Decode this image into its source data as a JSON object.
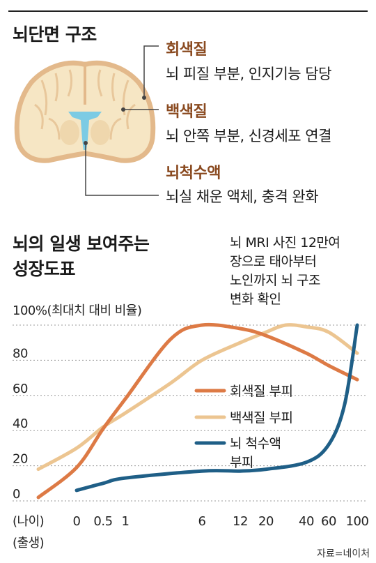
{
  "brain_section": {
    "title": "뇌단면 구조",
    "labels": [
      {
        "title": "회색질",
        "desc": "뇌 피질 부분, 인지기능 담당"
      },
      {
        "title": "백색질",
        "desc": "뇌 안쪽 부분, 신경세포 연결"
      },
      {
        "title": "뇌척수액",
        "desc": "뇌실 채운 액체, 충격 완화"
      }
    ]
  },
  "chart_title": [
    "뇌의 일생 보여주는",
    "성장도표"
  ],
  "note": [
    "뇌 MRI 사진 12만여",
    "장으로 태아부터",
    "노인까지 뇌 구조",
    "변화 확인"
  ],
  "source": "자료=네이처",
  "colors": {
    "gray_matter": "#dd7a45",
    "white_matter": "#ecc591",
    "csf": "#1f5f87",
    "brain_fill": "#f6e6c4",
    "brain_stroke": "#e3b98b",
    "ventricle": "#7ccbe4"
  },
  "chart_data": {
    "type": "line",
    "ylabel": "100%(최대치 대비 비율)",
    "y_ticks": [
      "100%",
      "80",
      "60",
      "40",
      "20",
      "0"
    ],
    "y_tick_values": [
      100,
      80,
      60,
      40,
      20,
      0
    ],
    "ylim": [
      0,
      100
    ],
    "x_unit_label": "(나이)",
    "x_ticks": [
      "0",
      "0.5",
      "1",
      "6",
      "12",
      "20",
      "40",
      "60",
      "100"
    ],
    "x_tick_values": [
      0,
      0.5,
      1,
      6,
      12,
      20,
      40,
      60,
      100
    ],
    "x_sublabel": "(출생)",
    "x_scale": "log",
    "grid": "horizontal dotted",
    "legend_position": "center-right",
    "series": [
      {
        "name": "회색질 부피",
        "color": "#dd7a45",
        "x": [
          -0.35,
          0,
          0.5,
          1,
          3,
          6,
          12,
          20,
          40,
          60,
          100
        ],
        "y": [
          2,
          19,
          41,
          58,
          92,
          100,
          98,
          94,
          84,
          77,
          69
        ]
      },
      {
        "name": "백색질 부피",
        "color": "#ecc591",
        "x": [
          -0.35,
          0,
          0.5,
          1,
          3,
          6,
          12,
          20,
          30,
          40,
          60,
          100
        ],
        "y": [
          18,
          30,
          42,
          50,
          67,
          80,
          90,
          96,
          100,
          99,
          96,
          84
        ]
      },
      {
        "name": "뇌 척수액 부피",
        "label_lines": [
          "뇌 척수액",
          "부피"
        ],
        "color": "#1f5f87",
        "x": [
          0,
          0.5,
          1,
          6,
          12,
          20,
          40,
          60,
          80,
          100
        ],
        "y": [
          6,
          10,
          13,
          17,
          17,
          18,
          22,
          32,
          55,
          100
        ]
      }
    ]
  }
}
